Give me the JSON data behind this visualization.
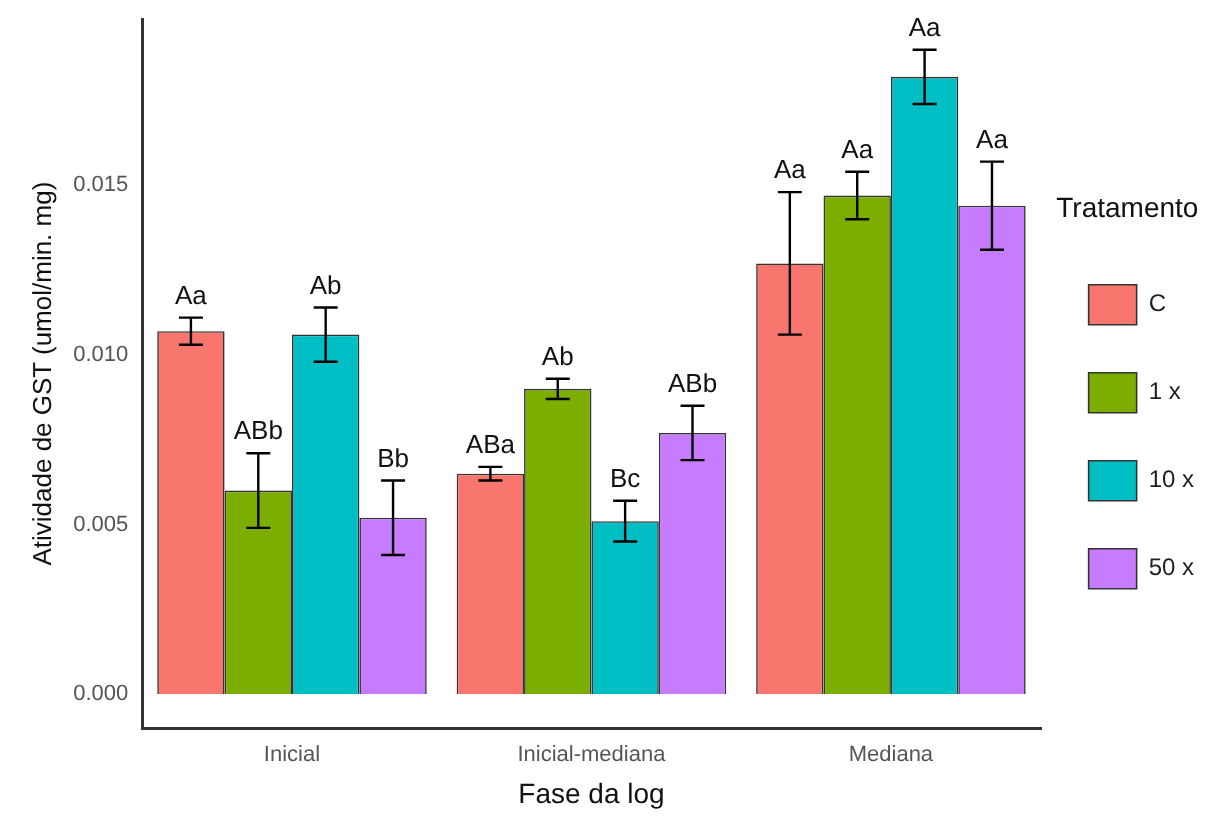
{
  "chart_data": {
    "type": "bar",
    "xlabel": "Fase da log",
    "ylabel": "Atividade de GST (umol/min. mg)",
    "legend_title": "Tratamento",
    "categories": [
      "Inicial",
      "Inicial-mediana",
      "Mediana"
    ],
    "series": [
      {
        "name": "C",
        "color": "#f8766d",
        "values": [
          0.0107,
          0.0065,
          0.0127
        ],
        "errors": [
          0.0004,
          0.0002,
          0.0021
        ],
        "value_labels": [
          "Aa",
          "ABa",
          "Aa"
        ]
      },
      {
        "name": "1 x",
        "color": "#7cae00",
        "values": [
          0.006,
          0.009,
          0.0147
        ],
        "errors": [
          0.0011,
          0.0003,
          0.0007
        ],
        "value_labels": [
          "ABb",
          "Ab",
          "Aa"
        ]
      },
      {
        "name": "10 x",
        "color": "#00bfc4",
        "values": [
          0.0106,
          0.0051,
          0.0182
        ],
        "errors": [
          0.0008,
          0.0006,
          0.0008
        ],
        "value_labels": [
          "Ab",
          "Bc",
          "Aa"
        ]
      },
      {
        "name": "50 x",
        "color": "#c77cff",
        "values": [
          0.0052,
          0.0077,
          0.0144
        ],
        "errors": [
          0.0011,
          0.0008,
          0.0013
        ],
        "value_labels": [
          "Bb",
          "ABb",
          "Aa"
        ]
      }
    ],
    "ylim": [
      -0.001,
      0.0199
    ],
    "yticks": [
      {
        "value": 0,
        "label": "0.000"
      },
      {
        "value": 0.005,
        "label": "0.005"
      },
      {
        "value": 0.01,
        "label": "0.010"
      },
      {
        "value": 0.015,
        "label": "0.015"
      }
    ],
    "grid": false,
    "legend": "right"
  }
}
